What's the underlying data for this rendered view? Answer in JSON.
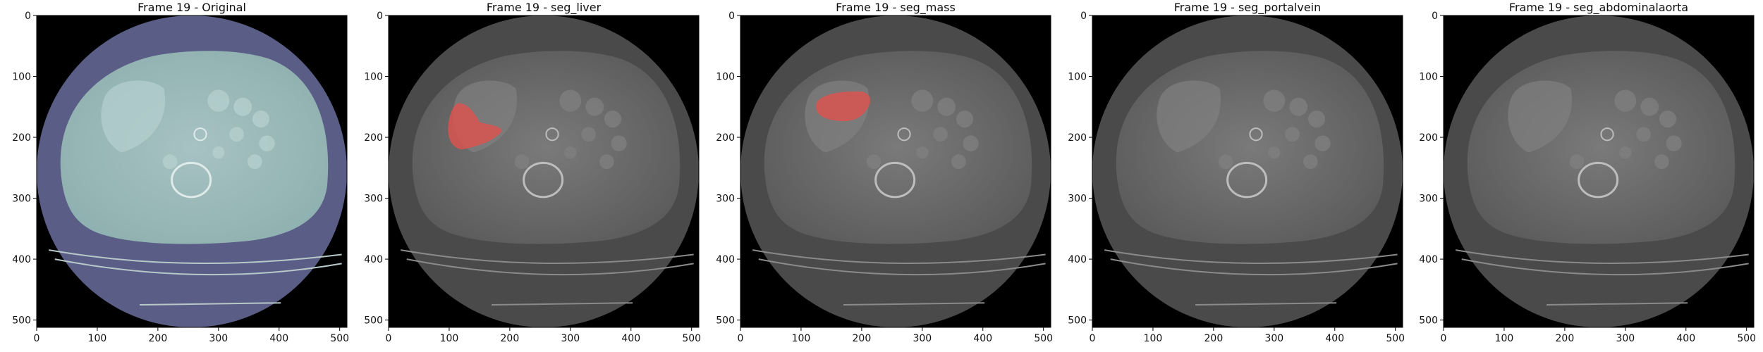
{
  "figure": {
    "panels": [
      {
        "title": "Frame 19 - Original",
        "overlay": "none",
        "mask": null
      },
      {
        "title": "Frame 19 - seg_liver",
        "overlay": "seg",
        "mask": "liver"
      },
      {
        "title": "Frame 19 - seg_mass",
        "overlay": "seg",
        "mask": "mass"
      },
      {
        "title": "Frame 19 - seg_portalvein",
        "overlay": "seg",
        "mask": null
      },
      {
        "title": "Frame 19 - seg_abdominalaorta",
        "overlay": "seg",
        "mask": null
      }
    ],
    "x_ticks": [
      "0",
      "100",
      "200",
      "300",
      "400",
      "500"
    ],
    "y_ticks": [
      "0",
      "100",
      "200",
      "300",
      "400",
      "500"
    ],
    "colors": {
      "background": "#000000",
      "original_tint": "#5a5e86",
      "body_tint": "#9fbdbd",
      "mask_color": "#d9534f"
    }
  }
}
